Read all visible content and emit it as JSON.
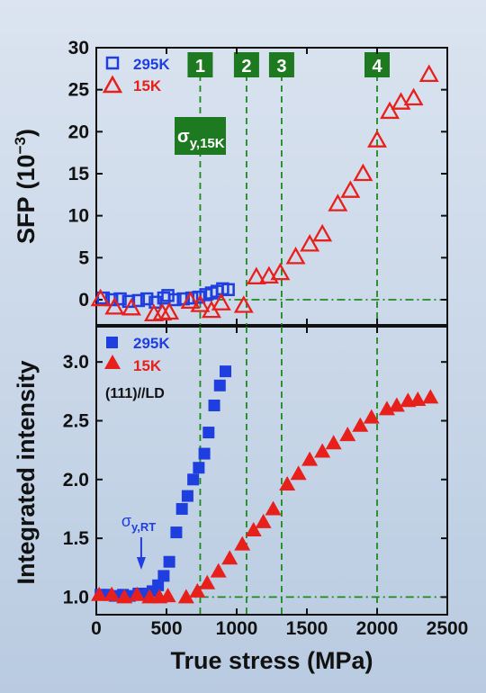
{
  "colors": {
    "k295": "#1f3ee0",
    "k15": "#e8201c",
    "ref_lines": "#1e8a1e",
    "badge_bg": "#1d7a21",
    "axis": "#111111"
  },
  "chart_data": [
    {
      "type": "scatter",
      "ylabel_main": "SFP",
      "ylabel_unit": "(10",
      "ylabel_exp": "−3",
      "ylabel_close": ")",
      "ylim": [
        -3,
        30
      ],
      "yticks": [
        0,
        5,
        10,
        15,
        20,
        25,
        30
      ],
      "xlim": [
        0,
        2500
      ],
      "legend_position": "top-left",
      "series": [
        {
          "name": "295K",
          "marker": "open-square",
          "color": "#1f3ee0",
          "x": [
            50,
            110,
            170,
            230,
            300,
            360,
            420,
            480,
            510,
            560,
            620,
            680,
            730,
            780,
            820,
            860,
            900,
            940
          ],
          "y": [
            0.2,
            0.0,
            0.1,
            -0.2,
            -0.1,
            0.1,
            -0.3,
            0.2,
            0.5,
            0.0,
            0.1,
            0.2,
            0.3,
            0.6,
            0.8,
            1.0,
            1.3,
            1.2
          ]
        },
        {
          "name": "15K",
          "marker": "open-triangle",
          "color": "#e8201c",
          "x": [
            30,
            130,
            250,
            410,
            470,
            520,
            670,
            740,
            820,
            890,
            1050,
            1140,
            1230,
            1310,
            1420,
            1520,
            1610,
            1720,
            1810,
            1900,
            2000,
            2090,
            2170,
            2260,
            2370
          ],
          "y": [
            0.1,
            -0.9,
            -1.0,
            -1.7,
            -1.6,
            -1.5,
            -0.2,
            -0.6,
            -1.3,
            -0.4,
            -0.7,
            2.7,
            2.8,
            3.2,
            5.1,
            6.6,
            7.8,
            11.4,
            13.0,
            15.0,
            19.0,
            22.4,
            23.5,
            24.0,
            26.8
          ]
        }
      ],
      "annotation_sigma": "σ",
      "annotation_sub": "y,15K",
      "markers": [
        {
          "label": "1",
          "x": 740
        },
        {
          "label": "2",
          "x": 1070
        },
        {
          "label": "3",
          "x": 1320
        },
        {
          "label": "4",
          "x": 2000
        }
      ],
      "baseline_y": 0,
      "grid": false
    },
    {
      "type": "scatter",
      "ylabel": "Integrated intensity",
      "xlabel": "True stress (MPa)",
      "ylim": [
        0.85,
        3.3
      ],
      "yticks": [
        1.0,
        1.5,
        2.0,
        2.5,
        3.0
      ],
      "xlim": [
        0,
        2500
      ],
      "xticks": [
        0,
        500,
        1000,
        1500,
        2000,
        2500
      ],
      "legend_position": "top-left",
      "orientation_label": "(111)//LD",
      "series": [
        {
          "name": "295K",
          "marker": "filled-square",
          "color": "#1f3ee0",
          "x": [
            30,
            80,
            130,
            190,
            240,
            300,
            350,
            400,
            440,
            480,
            520,
            570,
            610,
            650,
            690,
            730,
            770,
            800,
            840,
            880,
            920
          ],
          "y": [
            1.02,
            1.02,
            1.01,
            1.02,
            1.01,
            1.03,
            1.03,
            1.05,
            1.1,
            1.18,
            1.3,
            1.55,
            1.75,
            1.86,
            2.0,
            2.1,
            2.22,
            2.4,
            2.63,
            2.8,
            2.92
          ]
        },
        {
          "name": "15K",
          "marker": "filled-triangle",
          "color": "#e8201c",
          "x": [
            20,
            110,
            200,
            290,
            380,
            450,
            510,
            640,
            720,
            790,
            870,
            950,
            1040,
            1120,
            1190,
            1260,
            1360,
            1440,
            1520,
            1610,
            1690,
            1790,
            1880,
            1960,
            2070,
            2140,
            2220,
            2290,
            2380
          ],
          "y": [
            1.02,
            1.02,
            1.0,
            1.02,
            1.0,
            1.0,
            1.01,
            1.0,
            1.05,
            1.12,
            1.22,
            1.33,
            1.45,
            1.57,
            1.64,
            1.75,
            1.96,
            2.05,
            2.17,
            2.24,
            2.31,
            2.38,
            2.46,
            2.53,
            2.6,
            2.63,
            2.67,
            2.68,
            2.7
          ]
        }
      ],
      "annotation_sigma": "σ",
      "annotation_sub": "y,RT",
      "sigma_rt_x": 320,
      "baseline_y": 1.0,
      "grid": false
    }
  ]
}
